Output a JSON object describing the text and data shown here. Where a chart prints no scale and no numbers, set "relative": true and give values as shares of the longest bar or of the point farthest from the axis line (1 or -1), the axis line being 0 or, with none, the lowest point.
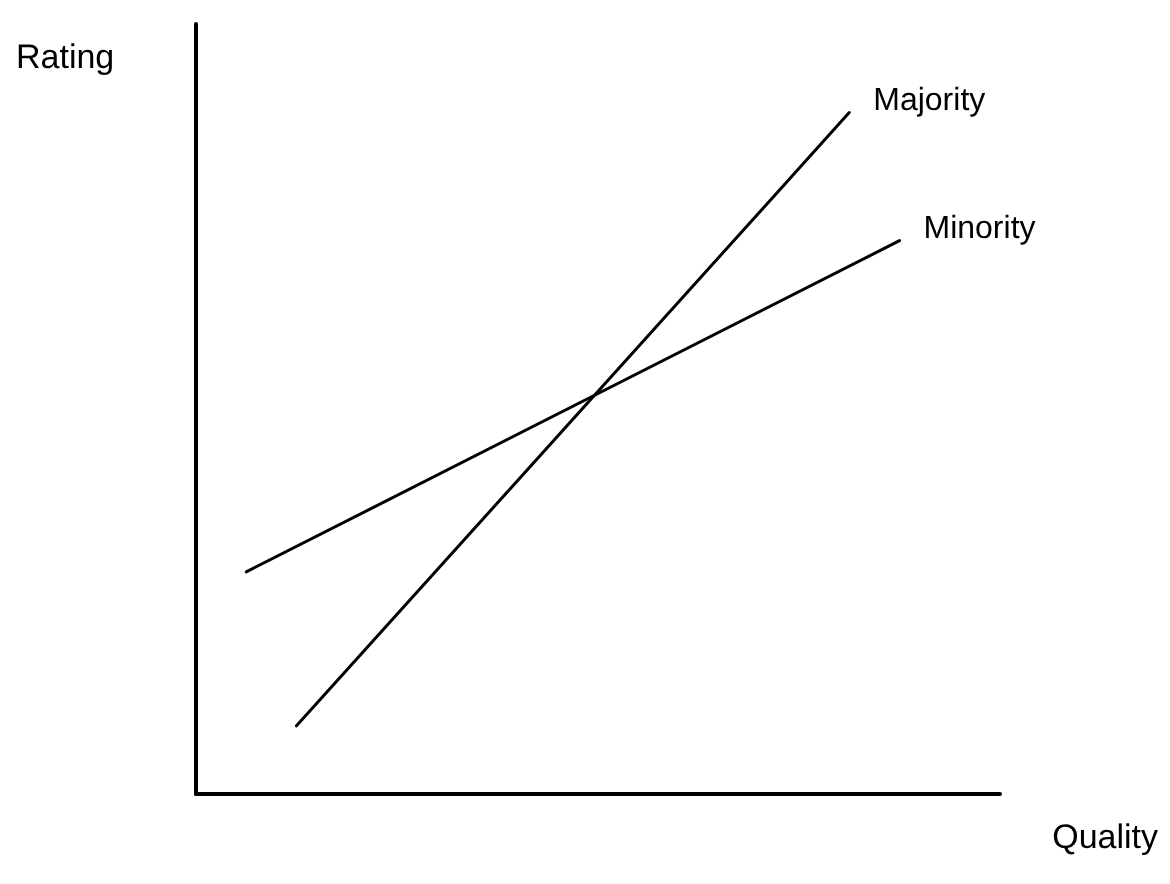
{
  "chart_data": {
    "type": "line",
    "relative": true,
    "xlabel": "Quality",
    "ylabel": "Rating",
    "grid": false,
    "legend": false,
    "marker": "none",
    "line_style": "solid",
    "categories": [
      null,
      null,
      null,
      null,
      null,
      null,
      null,
      null,
      null,
      null,
      null,
      null,
      null,
      null,
      null,
      null,
      null
    ],
    "series": [
      {
        "name": "Majority",
        "color": "#000000",
        "values": [
          null,
          null,
          0.1,
          null,
          null,
          null,
          null,
          null,
          null,
          null,
          null,
          null,
          null,
          1.0,
          null,
          null,
          null
        ]
      },
      {
        "name": "Minority",
        "color": "#000000",
        "values": [
          null,
          0.326,
          null,
          null,
          null,
          null,
          null,
          null,
          null,
          null,
          null,
          null,
          null,
          null,
          0.812,
          null,
          null
        ]
      }
    ]
  }
}
